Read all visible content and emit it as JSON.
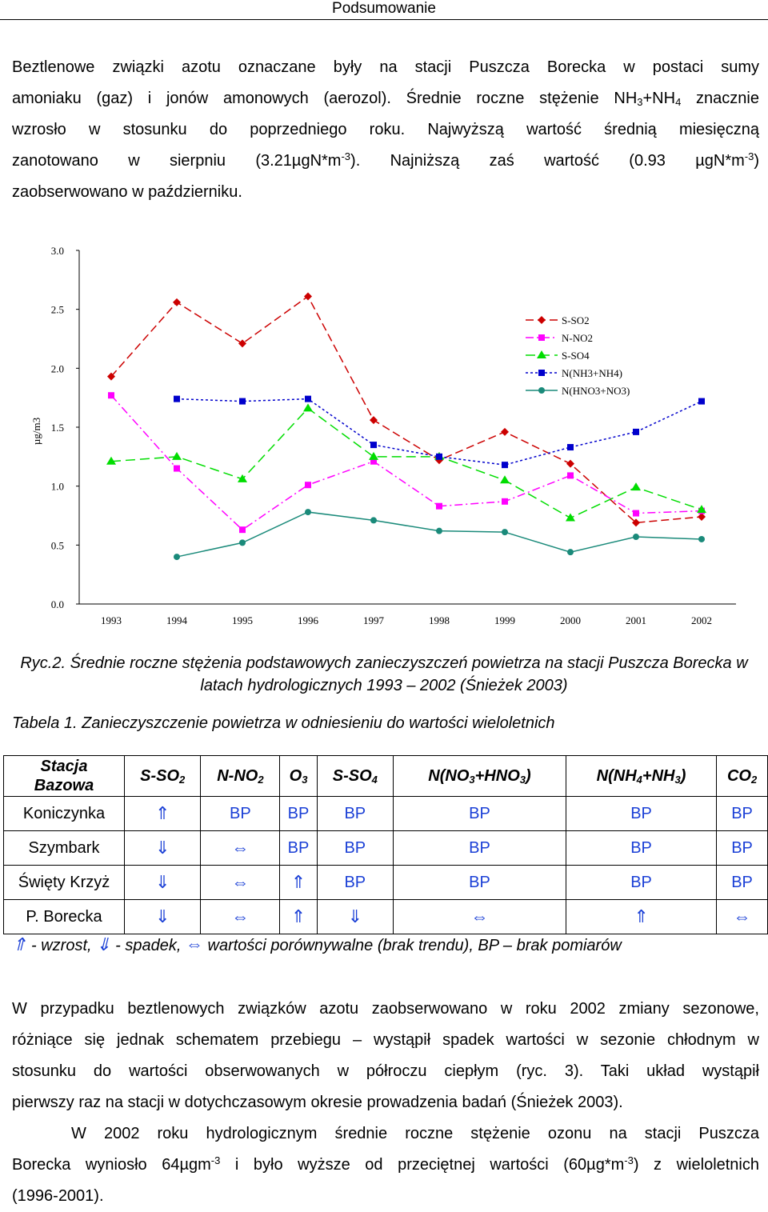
{
  "header": {
    "title": "Podsumowanie"
  },
  "para1": {
    "l1": "Beztlenowe związki azotu oznaczane były na stacji Puszcza Borecka w postaci sumy",
    "l2a": "amoniaku (gaz) i jonów amonowych (aerozol). Średnie roczne stężenie NH",
    "l2b": "3",
    "l2c": "+NH",
    "l2d": "4",
    "l2e": " znacznie",
    "l3": "wzrosło w stosunku do poprzedniego roku. Najwyższą wartość średnią miesięczną",
    "l4a": "zanotowano w sierpniu (3.21µgN*m",
    "l4b": "-3",
    "l4c": "). Najniższą zaś wartość (0.93 µgN*m",
    "l4d": "-3",
    "l4e": ")",
    "l5": "zaobserwowano w październiku."
  },
  "chart_data": {
    "type": "line",
    "x": [
      "1993",
      "1994",
      "1995",
      "1996",
      "1997",
      "1998",
      "1999",
      "2000",
      "2001",
      "2002"
    ],
    "ylabel": "µg/m3",
    "ylim": [
      0,
      3.0
    ],
    "yticks": [
      "0.0",
      "0.5",
      "1.0",
      "1.5",
      "2.0",
      "2.5",
      "3.0"
    ],
    "series": [
      {
        "name": "S-SO2",
        "color": "#cc0000",
        "marker": "diamond",
        "dash": "10,5",
        "values": [
          1.93,
          2.56,
          2.21,
          2.61,
          1.56,
          1.22,
          1.46,
          1.19,
          0.69,
          0.74
        ]
      },
      {
        "name": "N-NO2",
        "color": "#ff00ff",
        "marker": "square",
        "dash": "10,4,2,4",
        "values": [
          1.77,
          1.15,
          0.63,
          1.01,
          1.21,
          0.83,
          0.87,
          1.09,
          0.77,
          0.79
        ]
      },
      {
        "name": "S-SO4",
        "color": "#00dd00",
        "marker": "triangle",
        "dash": "12,6",
        "values": [
          1.21,
          1.25,
          1.06,
          1.66,
          1.25,
          1.25,
          1.05,
          0.73,
          0.99,
          0.8
        ]
      },
      {
        "name": "N(NH3+NH4)",
        "color": "#0000cc",
        "marker": "square",
        "dash": "3,3",
        "values": [
          null,
          1.74,
          1.72,
          1.74,
          1.35,
          1.25,
          1.18,
          1.33,
          1.46,
          1.72
        ]
      },
      {
        "name": "N(HNO3+NO3)",
        "color": "#1a8a7a",
        "marker": "circle",
        "dash": "",
        "values": [
          null,
          0.4,
          0.52,
          0.78,
          0.71,
          0.62,
          0.61,
          0.44,
          0.57,
          0.55
        ]
      }
    ]
  },
  "caption": {
    "text": "Ryc.2. Średnie roczne stężenia podstawowych zanieczyszczeń powietrza na stacji Puszcza Borecka w latach hydrologicznych 1993 – 2002 (Śnieżek 2003)"
  },
  "table": {
    "title": "Tabela 1. Zanieczyszczenie powietrza w odniesieniu do wartości wieloletnich",
    "head_station": "Stacja",
    "head_bazowa": "Bazowa",
    "columns": [
      {
        "main": "S-SO",
        "sub": "2",
        "tail": ""
      },
      {
        "main": "N-NO",
        "sub": "2",
        "tail": ""
      },
      {
        "main": "O",
        "sub": "3",
        "tail": ""
      },
      {
        "main": "S-SO",
        "sub": "4",
        "tail": ""
      },
      {
        "main": "N(NO",
        "sub": "3",
        "tail": "+HNO",
        "sub2": "3",
        "tail2": ")"
      },
      {
        "main": "N(NH",
        "sub": "4",
        "tail": "+NH",
        "sub2": "3",
        "tail2": ")"
      },
      {
        "main": "CO",
        "sub": "2",
        "tail": ""
      }
    ],
    "rows": [
      {
        "station": "Koniczynka",
        "cells": [
          "⇑",
          "BP",
          "BP",
          "BP",
          "BP",
          "BP",
          "BP"
        ]
      },
      {
        "station": "Szymbark",
        "cells": [
          "⇓",
          "⇔",
          "BP",
          "BP",
          "BP",
          "BP",
          "BP"
        ]
      },
      {
        "station": "Święty Krzyż",
        "cells": [
          "⇓",
          "⇔",
          "⇑",
          "BP",
          "BP",
          "BP",
          "BP"
        ]
      },
      {
        "station": "P. Borecka",
        "cells": [
          "⇓",
          "⇔",
          "⇑",
          "⇓",
          "⇔",
          "⇑",
          "⇔"
        ]
      }
    ]
  },
  "legend_line": {
    "up": "⇑",
    "up_text": "- wzrost,",
    "down": "⇓",
    "down_text": "- spadek,",
    "eq": "⇔",
    "eq_text": "wartości porównywalne (brak trendu), BP – brak pomiarów"
  },
  "para2": {
    "l1": "W przypadku beztlenowych związków azotu zaobserwowano w roku 2002 zmiany sezonowe,",
    "l2": "różniące się jednak schematem przebiegu – wystąpił spadek wartości w sezonie chłodnym w",
    "l3": "stosunku do wartości obserwowanych w półroczu ciepłym (ryc. 3). Taki układ wystąpił",
    "l4": "pierwszy raz na stacji w dotychczasowym okresie prowadzenia badań (Śnieżek 2003)."
  },
  "para3": {
    "l1": "W 2002 roku hydrologicznym średnie roczne stężenie ozonu na stacji Puszcza",
    "l2a": "Borecka wyniosło 64µgm",
    "l2b": "-3",
    "l2c": " i było wyższe od przeciętnej wartości (60µg*m",
    "l2d": "-3",
    "l2e": ") z wieloletnich",
    "l3": "(1996-2001)."
  }
}
